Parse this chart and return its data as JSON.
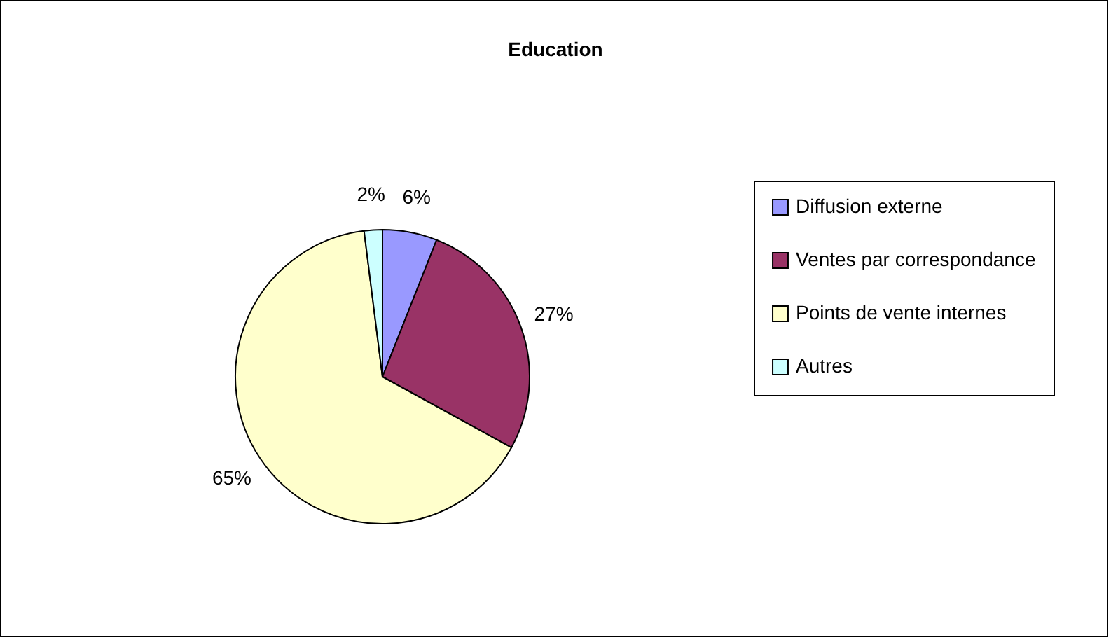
{
  "chart_data": {
    "type": "pie",
    "title": "Education",
    "categories": [
      "Diffusion externe",
      "Ventes par correspondance",
      "Points de vente internes",
      "Autres"
    ],
    "values": [
      6,
      27,
      65,
      2
    ],
    "colors": [
      "#9999ff",
      "#993366",
      "#ffffcc",
      "#ccffff"
    ],
    "value_labels": [
      "6%",
      "27%",
      "65%",
      "2%"
    ],
    "legend": "right"
  }
}
